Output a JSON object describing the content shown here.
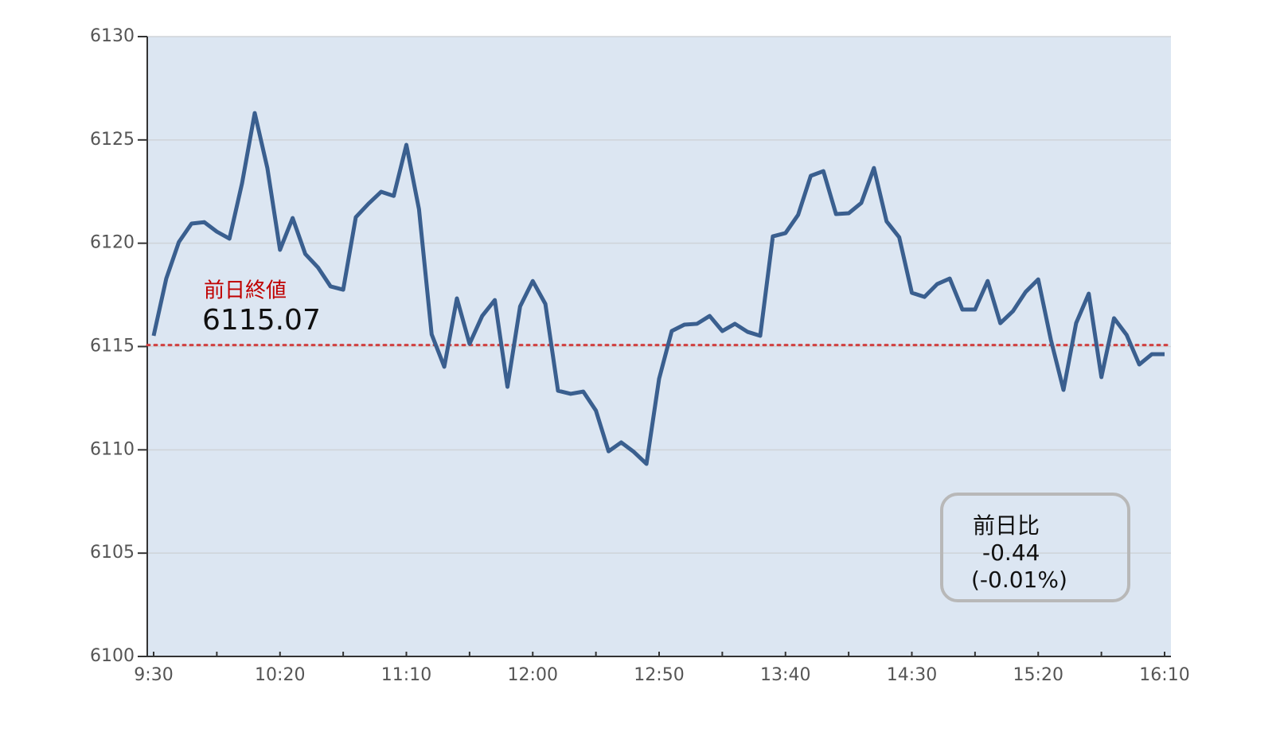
{
  "chart_data": {
    "type": "line",
    "categories": [
      "9:30",
      null,
      null,
      null,
      null,
      null,
      null,
      null,
      null,
      null,
      "10:20",
      null,
      null,
      null,
      null,
      null,
      null,
      null,
      null,
      null,
      "11:10",
      null,
      null,
      null,
      null,
      null,
      null,
      null,
      null,
      null,
      "12:00",
      null,
      null,
      null,
      null,
      null,
      null,
      null,
      null,
      null,
      "12:50",
      null,
      null,
      null,
      null,
      null,
      null,
      null,
      null,
      null,
      "13:40",
      null,
      null,
      null,
      null,
      null,
      null,
      null,
      null,
      null,
      "14:30",
      null,
      null,
      null,
      null,
      null,
      null,
      null,
      null,
      null,
      "15:20",
      null,
      null,
      null,
      null,
      null,
      null,
      null,
      null,
      null,
      "16:10"
    ],
    "series": [
      {
        "color": "#3a5f8f",
        "values": [
          6115.52,
          6118.29,
          6120.06,
          6120.95,
          6121.02,
          6120.56,
          6120.22,
          6122.91,
          6126.3,
          6123.64,
          6119.68,
          6121.22,
          6119.48,
          6118.83,
          6117.91,
          6117.75,
          6121.26,
          6121.91,
          6122.49,
          6122.29,
          6124.76,
          6121.64,
          6115.59,
          6114.02,
          6117.33,
          6115.13,
          6116.48,
          6117.25,
          6113.05,
          6116.94,
          6118.17,
          6117.06,
          6112.86,
          6112.71,
          6112.82,
          6111.9,
          6109.93,
          6110.36,
          6109.9,
          6109.32,
          6113.44,
          6115.75,
          6116.06,
          6116.1,
          6116.48,
          6115.75,
          6116.1,
          6115.71,
          6115.52,
          6120.33,
          6120.49,
          6121.37,
          6123.26,
          6123.49,
          6121.41,
          6121.45,
          6121.95,
          6123.64,
          6121.06,
          6120.29,
          6117.6,
          6117.4,
          6118.02,
          6118.29,
          6116.79,
          6116.79,
          6118.17,
          6116.13,
          6116.71,
          6117.64,
          6118.25,
          6115.33,
          6112.9,
          6116.13,
          6117.56,
          6113.52,
          6116.37,
          6115.56,
          6114.13,
          6114.63,
          6114.63
        ]
      }
    ],
    "ylim": [
      6100,
      6130
    ],
    "yticks": [
      6100,
      6105,
      6110,
      6115,
      6120,
      6125,
      6130
    ],
    "grid": true,
    "plot_background": "#dce6f2",
    "reference_line": {
      "title": "前日終値",
      "value": 6115.07,
      "color": "#d04040"
    },
    "change_box": {
      "title": "前日比",
      "value": -0.44,
      "percent": "(-0.01%)"
    }
  }
}
